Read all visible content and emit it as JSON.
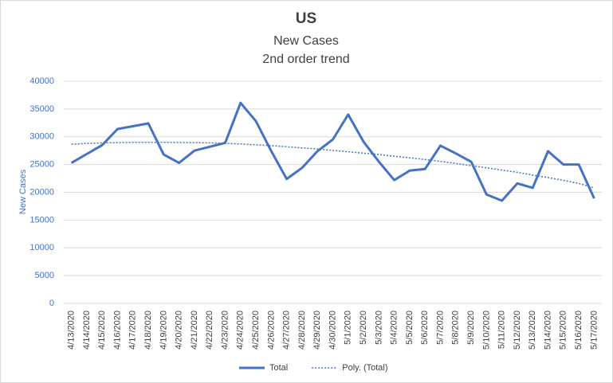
{
  "chart_data": {
    "type": "line",
    "title": "US",
    "subtitle": [
      "New Cases",
      "2nd order trend"
    ],
    "y_label": "New Cases",
    "categories": [
      "4/13/2020",
      "4/14/2020",
      "4/15/2020",
      "4/16/2020",
      "4/17/2020",
      "4/18/2020",
      "4/19/2020",
      "4/20/2020",
      "4/21/2020",
      "4/22/2020",
      "4/23/2020",
      "4/24/2020",
      "4/25/2020",
      "4/26/2020",
      "4/27/2020",
      "4/28/2020",
      "4/29/2020",
      "4/30/2020",
      "5/1/2020",
      "5/2/2020",
      "5/3/2020",
      "5/4/2020",
      "5/5/2020",
      "5/6/2020",
      "5/7/2020",
      "5/8/2020",
      "5/9/2020",
      "5/10/2020",
      "5/11/2020",
      "5/12/2020",
      "5/13/2020",
      "5/14/2020",
      "5/15/2020",
      "5/16/2020",
      "5/17/2020"
    ],
    "series": [
      {
        "name": "Total",
        "color": "#4472c4",
        "line_style": "solid",
        "values": [
          25300,
          26900,
          28500,
          31400,
          31900,
          32400,
          26800,
          25300,
          27500,
          28200,
          28900,
          36100,
          32800,
          27400,
          22400,
          24400,
          27400,
          29500,
          34000,
          29100,
          25500,
          22200,
          23900,
          24200,
          28400,
          27000,
          25500,
          19600,
          18500,
          21600,
          20800,
          27400,
          25000,
          25000,
          18900
        ]
      },
      {
        "name": "Poly. (Total)",
        "color": "#4472c4",
        "line_style": "dotted",
        "values": [
          28650,
          28800,
          28900,
          28950,
          29000,
          29000,
          29000,
          28980,
          28950,
          28900,
          28800,
          28700,
          28550,
          28400,
          28200,
          28000,
          27800,
          27550,
          27300,
          27050,
          26800,
          26500,
          26200,
          25900,
          25550,
          25200,
          24800,
          24400,
          24000,
          23600,
          23100,
          22650,
          22150,
          21600,
          20800
        ]
      }
    ],
    "ylim": [
      0,
      40000
    ],
    "yticks": [
      0,
      5000,
      10000,
      15000,
      20000,
      25000,
      30000,
      35000,
      40000
    ],
    "grid": true,
    "legend": "bottom"
  }
}
